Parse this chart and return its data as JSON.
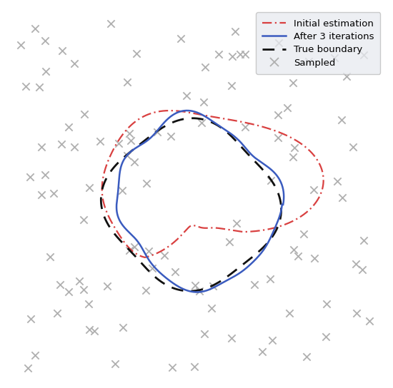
{
  "legend_labels": [
    "Initial estimation",
    "After 3 iterations",
    "True boundary",
    "Sampled"
  ],
  "legend_colors": [
    "#d94040",
    "#3a5bbf",
    "#111111",
    "#aaaaaa"
  ],
  "background_color": "#ffffff",
  "figsize": [
    5.5,
    5.44
  ],
  "dpi": 100,
  "xlim": [
    -3.5,
    3.5
  ],
  "ylim": [
    -3.5,
    3.5
  ],
  "n_sampled": 110,
  "seed": 42
}
